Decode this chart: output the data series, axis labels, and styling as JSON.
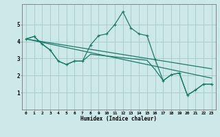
{
  "xlabel": "Humidex (Indice chaleur)",
  "bg_color": "#cce8e8",
  "grid_color": "#aacccc",
  "line_color": "#1a7a6a",
  "xlim": [
    -0.5,
    23.5
  ],
  "ylim": [
    0,
    6.2
  ],
  "yticks": [
    1,
    2,
    3,
    4,
    5
  ],
  "xticks": [
    0,
    1,
    2,
    3,
    4,
    5,
    6,
    7,
    8,
    9,
    10,
    11,
    12,
    13,
    14,
    15,
    16,
    17,
    18,
    19,
    20,
    21,
    22,
    23
  ],
  "spiky_x": [
    0,
    1,
    2,
    3,
    4,
    5,
    6,
    7,
    8,
    9,
    10,
    11,
    12,
    13,
    14,
    15,
    16,
    17,
    18,
    19,
    20,
    21,
    22,
    23
  ],
  "spiky_y": [
    4.15,
    4.3,
    3.85,
    3.5,
    2.85,
    2.65,
    2.85,
    2.85,
    3.8,
    4.35,
    4.45,
    5.0,
    5.75,
    4.8,
    4.45,
    4.35,
    2.95,
    1.7,
    2.05,
    2.15,
    0.85,
    1.15,
    1.5,
    1.5
  ],
  "smooth_x": [
    0,
    1,
    2,
    3,
    4,
    5,
    6,
    7,
    8,
    9,
    10,
    11,
    12,
    13,
    14,
    15,
    16,
    17,
    18,
    19,
    20,
    21,
    22,
    23
  ],
  "smooth_y": [
    4.15,
    4.3,
    3.85,
    3.5,
    2.85,
    2.65,
    2.85,
    2.85,
    3.25,
    3.2,
    3.15,
    3.1,
    3.05,
    3.0,
    2.95,
    2.9,
    2.35,
    1.7,
    2.05,
    2.15,
    0.85,
    1.15,
    1.5,
    1.5
  ],
  "trend1_x": [
    0,
    23
  ],
  "trend1_y": [
    4.15,
    1.85
  ],
  "trend2_x": [
    0,
    23
  ],
  "trend2_y": [
    4.15,
    2.4
  ]
}
